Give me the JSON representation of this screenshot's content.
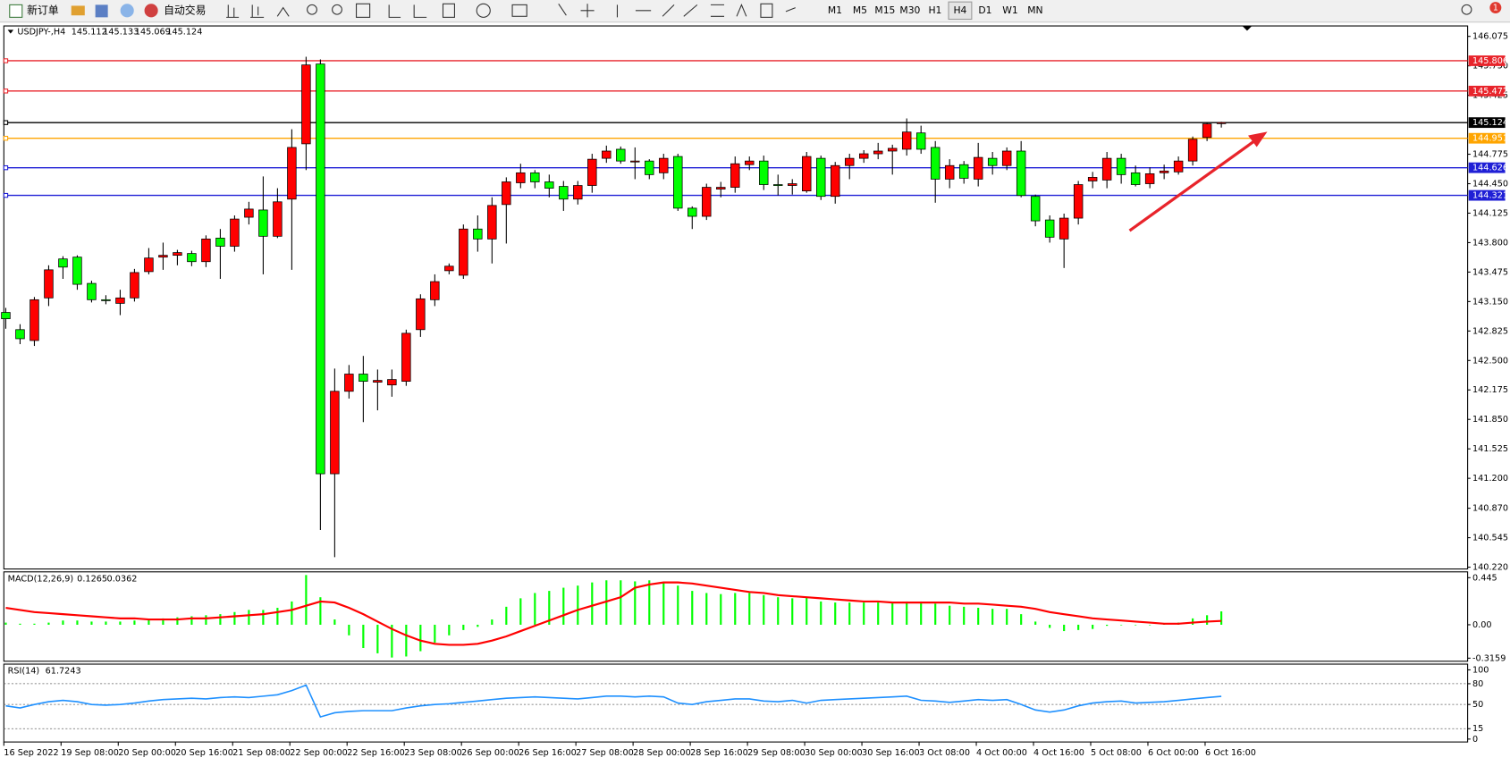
{
  "toolbar": {
    "new_order": "新订单",
    "auto_trading": "自动交易",
    "timeframes": [
      "M1",
      "M5",
      "M15",
      "M30",
      "H1",
      "H4",
      "D1",
      "W1",
      "MN"
    ],
    "active_timeframe": "H4",
    "notification_count": 1
  },
  "chart_data": {
    "type": "candlestick",
    "symbol": "USDJPY-,H4",
    "categories": [
      "16 Sep 2022",
      null,
      null,
      null,
      "19 Sep 08:00",
      null,
      null,
      null,
      "20 Sep 00:00",
      null,
      null,
      null,
      "20 Sep 16:00",
      null,
      null,
      null,
      "21 Sep 08:00",
      null,
      null,
      null,
      "22 Sep 00:00",
      null,
      null,
      null,
      "22 Sep 16:00",
      null,
      null,
      null,
      "23 Sep 08:00",
      null,
      null,
      null,
      "26 Sep 00:00",
      null,
      null,
      null,
      "26 Sep 16:00",
      null,
      null,
      null,
      "27 Sep 08:00",
      null,
      null,
      null,
      "28 Sep 00:00",
      null,
      null,
      null,
      "28 Sep 16:00",
      null,
      null,
      null,
      "29 Sep 08:00",
      null,
      null,
      null,
      "30 Sep 00:00",
      null,
      null,
      null,
      "30 Sep 16:00",
      null,
      null,
      null,
      "3 Oct 08:00",
      null,
      null,
      null,
      "4 Oct 00:00",
      null,
      null,
      null,
      "4 Oct 16:00",
      null,
      null,
      null,
      "5 Oct 08:00",
      null,
      null,
      null,
      "6 Oct 00:00",
      null,
      null,
      null,
      "6 Oct 16:00",
      null
    ],
    "open": [
      143.03,
      142.84,
      142.72,
      143.19,
      143.62,
      143.64,
      143.35,
      143.17,
      143.13,
      143.19,
      143.48,
      143.64,
      143.66,
      143.68,
      143.59,
      143.85,
      143.76,
      144.08,
      144.16,
      143.87,
      144.28,
      144.89,
      145.77,
      141.25,
      142.16,
      142.35,
      142.26,
      142.23,
      142.27,
      142.84,
      143.17,
      143.49,
      143.44,
      143.95,
      143.84,
      144.22,
      144.46,
      144.57,
      144.47,
      144.42,
      144.28,
      144.43,
      144.73,
      144.83,
      144.69,
      144.7,
      144.57,
      144.75,
      144.18,
      144.09,
      144.39,
      144.41,
      144.66,
      144.7,
      144.44,
      144.43,
      144.37,
      144.73,
      144.31,
      144.65,
      144.73,
      144.78,
      144.81,
      144.83,
      145.01,
      144.85,
      144.5,
      144.66,
      144.5,
      144.73,
      144.65,
      144.81,
      144.31,
      144.05,
      143.84,
      144.07,
      144.48,
      144.49,
      144.73,
      144.57,
      144.45,
      144.57,
      144.58,
      144.7,
      144.96,
      145.112
    ],
    "high": [
      143.08,
      142.9,
      143.2,
      143.55,
      143.65,
      143.66,
      143.38,
      143.22,
      143.28,
      143.51,
      143.74,
      143.8,
      143.72,
      143.71,
      143.88,
      143.95,
      144.1,
      144.25,
      144.53,
      144.4,
      145.05,
      145.85,
      145.82,
      142.41,
      142.45,
      142.55,
      142.4,
      142.4,
      142.84,
      143.23,
      143.45,
      143.57,
      144.0,
      144.1,
      144.3,
      144.52,
      144.67,
      144.6,
      144.55,
      144.48,
      144.48,
      144.78,
      144.87,
      144.86,
      144.85,
      144.72,
      144.78,
      144.78,
      144.2,
      144.45,
      144.47,
      144.75,
      144.75,
      144.76,
      144.55,
      144.5,
      144.8,
      144.76,
      144.69,
      144.78,
      144.82,
      144.9,
      144.88,
      145.17,
      145.09,
      144.92,
      144.72,
      144.7,
      144.9,
      144.8,
      144.85,
      144.92,
      144.33,
      144.1,
      144.12,
      144.48,
      144.58,
      144.8,
      144.78,
      144.65,
      144.63,
      144.66,
      144.75,
      144.97,
      145.13,
      145.133
    ],
    "low": [
      142.85,
      142.68,
      142.66,
      143.1,
      143.4,
      143.28,
      143.14,
      143.12,
      143.0,
      143.15,
      143.45,
      143.5,
      143.55,
      143.54,
      143.53,
      143.4,
      143.7,
      144.0,
      143.45,
      143.85,
      143.5,
      144.6,
      140.63,
      140.33,
      142.08,
      141.82,
      141.95,
      142.1,
      142.22,
      142.76,
      143.1,
      143.45,
      143.4,
      143.7,
      143.57,
      143.79,
      144.4,
      144.4,
      144.3,
      144.15,
      144.22,
      144.35,
      144.68,
      144.67,
      144.5,
      144.5,
      144.5,
      144.15,
      143.95,
      144.05,
      144.3,
      144.35,
      144.6,
      144.38,
      144.32,
      144.33,
      144.35,
      144.27,
      144.23,
      144.5,
      144.68,
      144.72,
      144.55,
      144.76,
      144.78,
      144.24,
      144.4,
      144.45,
      144.42,
      144.55,
      144.6,
      144.3,
      143.98,
      143.8,
      143.52,
      144.0,
      144.4,
      144.4,
      144.45,
      144.42,
      144.4,
      144.5,
      144.55,
      144.65,
      144.92,
      145.069
    ],
    "close": [
      142.96,
      142.74,
      143.17,
      143.5,
      143.53,
      143.34,
      143.17,
      143.16,
      143.19,
      143.47,
      143.63,
      143.66,
      143.69,
      143.59,
      143.84,
      143.76,
      144.06,
      144.17,
      143.87,
      144.25,
      144.85,
      145.76,
      141.25,
      142.16,
      142.35,
      142.27,
      142.28,
      142.29,
      142.8,
      143.18,
      143.37,
      143.54,
      143.95,
      143.84,
      144.21,
      144.47,
      144.57,
      144.47,
      144.4,
      144.28,
      144.43,
      144.72,
      144.81,
      144.7,
      144.7,
      144.55,
      144.73,
      144.18,
      144.09,
      144.41,
      144.41,
      144.67,
      144.7,
      144.44,
      144.43,
      144.45,
      144.75,
      144.31,
      144.65,
      144.73,
      144.78,
      144.81,
      144.84,
      145.02,
      144.83,
      144.5,
      144.65,
      144.51,
      144.74,
      144.65,
      144.81,
      144.32,
      144.04,
      143.86,
      144.07,
      144.44,
      144.52,
      144.73,
      144.55,
      144.44,
      144.56,
      144.59,
      144.7,
      144.94,
      145.11,
      145.124
    ],
    "up_color": "#ff0000",
    "down_color": "#00ff00",
    "ylim": [
      140.2,
      146.19
    ],
    "yticks": [
      {
        "value": 146.075,
        "label": "146.075"
      },
      {
        "value": 145.75,
        "label": "145.750"
      },
      {
        "value": 145.425,
        "label": "145.425"
      },
      {
        "value": 144.775,
        "label": "144.775"
      },
      {
        "value": 144.45,
        "label": "144.450"
      },
      {
        "value": 144.125,
        "label": "144.125"
      },
      {
        "value": 143.8,
        "label": "143.800"
      },
      {
        "value": 143.475,
        "label": "143.475"
      },
      {
        "value": 143.15,
        "label": "143.150"
      },
      {
        "value": 142.825,
        "label": "142.825"
      },
      {
        "value": 142.5,
        "label": "142.500"
      },
      {
        "value": 142.175,
        "label": "142.175"
      },
      {
        "value": 141.85,
        "label": "141.850"
      },
      {
        "value": 141.525,
        "label": "141.525"
      },
      {
        "value": 141.2,
        "label": "141.200"
      },
      {
        "value": 140.87,
        "label": "140.870"
      },
      {
        "value": 140.545,
        "label": "140.545"
      },
      {
        "value": 140.22,
        "label": "140.220"
      }
    ],
    "levels": [
      {
        "value": 145.806,
        "color": "#e8242b"
      },
      {
        "value": 145.472,
        "color": "#e8242b"
      },
      {
        "value": 144.951,
        "color": "#ffa500"
      },
      {
        "value": 144.626,
        "color": "#1f1fd6"
      },
      {
        "value": 144.321,
        "color": "#1f1fd6"
      }
    ],
    "bid_color": "#000000",
    "macd": {
      "label": "MACD(12,26,9)",
      "histogram": [
        0.02,
        0.01,
        0.01,
        0.02,
        0.04,
        0.04,
        0.03,
        0.03,
        0.03,
        0.04,
        0.05,
        0.06,
        0.07,
        0.08,
        0.09,
        0.1,
        0.12,
        0.14,
        0.14,
        0.16,
        0.22,
        0.47,
        0.26,
        0.05,
        -0.1,
        -0.22,
        -0.27,
        -0.31,
        -0.3,
        -0.25,
        -0.17,
        -0.1,
        -0.05,
        -0.02,
        0.05,
        0.17,
        0.25,
        0.3,
        0.32,
        0.35,
        0.37,
        0.4,
        0.42,
        0.42,
        0.41,
        0.42,
        0.4,
        0.37,
        0.32,
        0.3,
        0.29,
        0.3,
        0.3,
        0.28,
        0.26,
        0.25,
        0.26,
        0.22,
        0.21,
        0.21,
        0.21,
        0.21,
        0.21,
        0.22,
        0.22,
        0.2,
        0.18,
        0.17,
        0.16,
        0.15,
        0.15,
        0.1,
        0.03,
        -0.03,
        -0.06,
        -0.05,
        -0.04,
        -0.01,
        0.0,
        0.0,
        0.0,
        0.01,
        0.02,
        0.06,
        0.09,
        0.1265
      ],
      "signal": [
        0.16,
        0.14,
        0.12,
        0.11,
        0.1,
        0.09,
        0.08,
        0.07,
        0.06,
        0.06,
        0.05,
        0.05,
        0.05,
        0.06,
        0.06,
        0.07,
        0.08,
        0.09,
        0.1,
        0.12,
        0.14,
        0.18,
        0.22,
        0.21,
        0.16,
        0.1,
        0.03,
        -0.04,
        -0.1,
        -0.15,
        -0.18,
        -0.19,
        -0.19,
        -0.18,
        -0.15,
        -0.11,
        -0.06,
        -0.01,
        0.04,
        0.09,
        0.14,
        0.18,
        0.22,
        0.26,
        0.35,
        0.38,
        0.4,
        0.4,
        0.39,
        0.37,
        0.35,
        0.33,
        0.31,
        0.3,
        0.28,
        0.27,
        0.26,
        0.25,
        0.24,
        0.23,
        0.22,
        0.22,
        0.21,
        0.21,
        0.21,
        0.21,
        0.21,
        0.2,
        0.2,
        0.19,
        0.18,
        0.17,
        0.15,
        0.12,
        0.1,
        0.08,
        0.06,
        0.05,
        0.04,
        0.03,
        0.02,
        0.01,
        0.01,
        0.02,
        0.03,
        0.0362
      ],
      "histogram_color": "#00ff00",
      "signal_color": "#ff0000",
      "ylim": [
        -0.345,
        0.5
      ],
      "yticks": [
        0.445,
        {
          "value": 0,
          "label": "0.00"
        },
        -0.3159
      ]
    },
    "rsi": {
      "label": "RSI(14)",
      "values": [
        48,
        45,
        50,
        54,
        56,
        54,
        50,
        49,
        50,
        52,
        55,
        57,
        58,
        59,
        58,
        60,
        61,
        60,
        62,
        64,
        70,
        78,
        32,
        38,
        40,
        41,
        41,
        41,
        45,
        48,
        50,
        51,
        53,
        55,
        57,
        59,
        60,
        61,
        60,
        59,
        58,
        60,
        62,
        62,
        61,
        62,
        61,
        52,
        50,
        54,
        56,
        58,
        58,
        55,
        54,
        56,
        52,
        56,
        57,
        58,
        59,
        60,
        61,
        62,
        56,
        55,
        53,
        55,
        57,
        56,
        57,
        50,
        42,
        39,
        42,
        48,
        52,
        54,
        55,
        52,
        53,
        54,
        56,
        58,
        60,
        61.7243
      ],
      "color": "#1e90ff",
      "ylim": [
        -4.2,
        108.3
      ],
      "yticks": [
        100,
        80,
        50,
        15,
        0
      ]
    }
  }
}
